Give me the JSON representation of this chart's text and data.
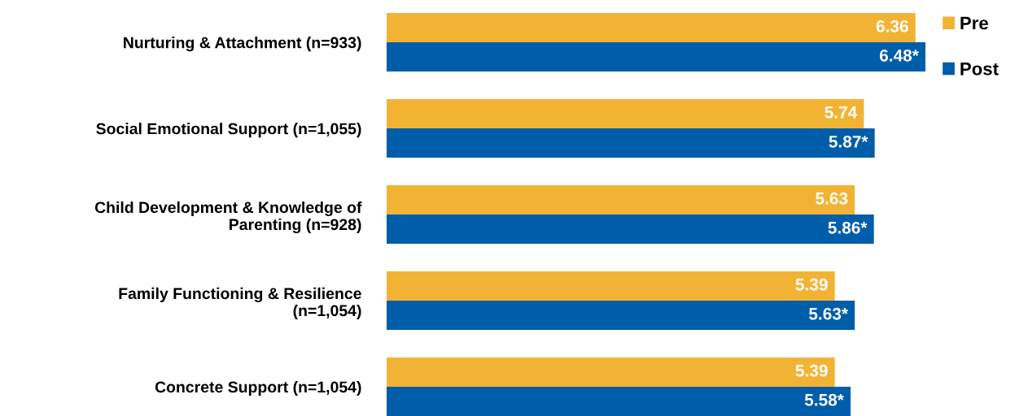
{
  "chart_data": {
    "type": "bar",
    "orientation": "horizontal",
    "categories": [
      "Nurturing & Attachment (n=933)",
      "Social Emotional Support (n=1,055)",
      "Child Development & Knowledge of Parenting (n=928)",
      "Family Functioning & Resilience (n=1,054)",
      "Concrete Support (n=1,054)"
    ],
    "series": [
      {
        "name": "Pre",
        "color": "#f2b335",
        "values": [
          6.36,
          5.74,
          5.63,
          5.39,
          5.39
        ],
        "value_labels": [
          "6.36",
          "5.74",
          "5.63",
          "5.39",
          "5.39"
        ]
      },
      {
        "name": "Post",
        "color": "#005daa",
        "values": [
          6.48,
          5.87,
          5.86,
          5.63,
          5.58
        ],
        "value_labels": [
          "6.48*",
          "5.87*",
          "5.86*",
          "5.63*",
          "5.58*"
        ]
      }
    ],
    "xlim": [
      0,
      6.5
    ],
    "tick_labels": "y",
    "grid": false,
    "legend": "top right"
  }
}
